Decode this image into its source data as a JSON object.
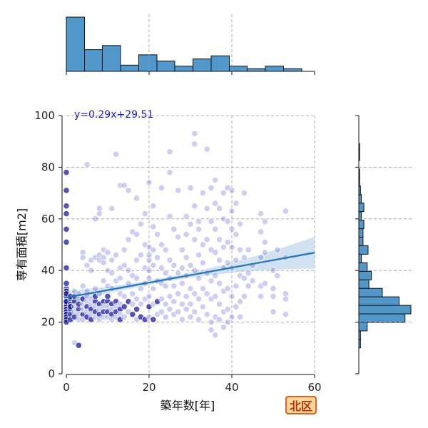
{
  "chart_data": {
    "type": "scatter",
    "xlabel": "築年数[年]",
    "ylabel": "専有面積[m2]",
    "xlim": [
      0,
      60
    ],
    "ylim": [
      0,
      100
    ],
    "x_ticks": [
      0,
      20,
      40,
      60
    ],
    "y_ticks": [
      0,
      20,
      40,
      60,
      80,
      100
    ],
    "grid": true,
    "regression": {
      "slope": 0.29,
      "intercept": 29.51,
      "x_range": [
        0,
        60
      ],
      "label": "y=0.29x+29.51"
    },
    "marginal_x_hist": {
      "bin_edges": [
        0,
        4.4,
        8.7,
        13.1,
        17.5,
        21.9,
        26.2,
        30.6,
        35.0,
        39.4,
        43.7,
        48.1,
        52.5,
        56.9
      ],
      "counts": [
        105,
        42,
        50,
        12,
        32,
        20,
        10,
        24,
        30,
        10,
        5,
        10,
        5
      ]
    },
    "marginal_y_hist": {
      "bin_edges": [
        10,
        13.3,
        16.6,
        19.9,
        23.2,
        26.5,
        29.8,
        33.1,
        36.4,
        39.7,
        43.0,
        46.3,
        49.6,
        52.9,
        56.2,
        59.5,
        62.8,
        66.1,
        69.4,
        72.7,
        76.0,
        79.3,
        82.6,
        85.9,
        89.2
      ],
      "counts": [
        2,
        2,
        10,
        55,
        62,
        48,
        28,
        12,
        15,
        10,
        3,
        11,
        5,
        5,
        6,
        3,
        6,
        3,
        2,
        1,
        1,
        0,
        1,
        1
      ]
    },
    "points": [
      [
        0,
        78
      ],
      [
        0,
        71
      ],
      [
        0,
        65
      ],
      [
        0,
        62
      ],
      [
        0,
        56
      ],
      [
        0,
        51
      ],
      [
        0,
        41
      ],
      [
        0,
        33
      ],
      [
        0,
        30
      ],
      [
        0,
        28
      ],
      [
        0,
        27
      ],
      [
        0,
        26
      ],
      [
        0,
        25
      ],
      [
        0,
        24
      ],
      [
        0,
        23
      ],
      [
        0,
        22
      ],
      [
        0,
        21
      ],
      [
        0,
        20
      ],
      [
        0,
        28
      ],
      [
        0,
        32
      ],
      [
        0,
        35
      ],
      [
        0,
        31
      ],
      [
        1,
        29
      ],
      [
        1,
        27
      ],
      [
        1,
        25
      ],
      [
        1,
        23
      ],
      [
        1,
        21
      ],
      [
        1,
        30
      ],
      [
        1,
        26
      ],
      [
        2,
        12
      ],
      [
        2,
        28
      ],
      [
        2,
        24
      ],
      [
        2,
        22
      ],
      [
        2,
        26
      ],
      [
        2,
        30
      ],
      [
        2,
        32
      ],
      [
        3,
        11
      ],
      [
        3,
        29
      ],
      [
        3,
        25
      ],
      [
        3,
        23
      ],
      [
        3,
        27
      ],
      [
        3,
        21
      ],
      [
        3,
        31
      ],
      [
        4,
        47
      ],
      [
        4,
        45
      ],
      [
        4,
        27
      ],
      [
        4,
        23
      ],
      [
        4,
        25
      ],
      [
        4,
        29
      ],
      [
        4,
        21
      ],
      [
        4,
        34
      ],
      [
        5,
        81
      ],
      [
        5,
        42
      ],
      [
        5,
        28
      ],
      [
        5,
        26
      ],
      [
        5,
        24
      ],
      [
        5,
        22
      ],
      [
        5,
        30
      ],
      [
        5,
        32
      ],
      [
        6,
        44
      ],
      [
        6,
        40
      ],
      [
        6,
        27
      ],
      [
        6,
        25
      ],
      [
        6,
        23
      ],
      [
        6,
        21
      ],
      [
        6,
        29
      ],
      [
        7,
        45
      ],
      [
        7,
        60
      ],
      [
        7,
        28
      ],
      [
        7,
        26
      ],
      [
        7,
        24
      ],
      [
        7,
        22
      ],
      [
        7,
        30
      ],
      [
        7,
        33
      ],
      [
        8,
        64
      ],
      [
        8,
        62
      ],
      [
        8,
        46
      ],
      [
        8,
        44
      ],
      [
        8,
        27
      ],
      [
        8,
        25
      ],
      [
        8,
        23
      ],
      [
        8,
        21
      ],
      [
        8,
        31
      ],
      [
        9,
        48
      ],
      [
        9,
        45
      ],
      [
        9,
        43
      ],
      [
        9,
        28
      ],
      [
        9,
        26
      ],
      [
        9,
        24
      ],
      [
        9,
        22
      ],
      [
        9,
        36
      ],
      [
        10,
        47
      ],
      [
        10,
        40
      ],
      [
        10,
        34
      ],
      [
        10,
        28
      ],
      [
        10,
        26
      ],
      [
        10,
        24
      ],
      [
        10,
        22
      ],
      [
        10,
        30
      ],
      [
        11,
        64
      ],
      [
        11,
        44
      ],
      [
        11,
        39
      ],
      [
        11,
        27
      ],
      [
        11,
        25
      ],
      [
        11,
        23
      ],
      [
        11,
        21
      ],
      [
        11,
        33
      ],
      [
        12,
        85
      ],
      [
        12,
        46
      ],
      [
        12,
        36
      ],
      [
        12,
        28
      ],
      [
        12,
        26
      ],
      [
        12,
        24
      ],
      [
        12,
        22
      ],
      [
        13,
        73
      ],
      [
        13,
        41
      ],
      [
        13,
        37
      ],
      [
        13,
        27
      ],
      [
        13,
        25
      ],
      [
        13,
        23
      ],
      [
        13,
        21
      ],
      [
        13,
        31
      ],
      [
        14,
        73
      ],
      [
        14,
        48
      ],
      [
        14,
        42
      ],
      [
        14,
        30
      ],
      [
        14,
        26
      ],
      [
        14,
        22
      ],
      [
        15,
        71
      ],
      [
        15,
        52
      ],
      [
        15,
        40
      ],
      [
        15,
        35
      ],
      [
        15,
        28
      ],
      [
        15,
        24
      ],
      [
        16,
        55
      ],
      [
        16,
        38
      ],
      [
        16,
        31
      ],
      [
        16,
        27
      ],
      [
        16,
        23
      ],
      [
        17,
        68
      ],
      [
        17,
        54
      ],
      [
        17,
        44
      ],
      [
        17,
        37
      ],
      [
        17,
        29
      ],
      [
        17,
        25
      ],
      [
        17,
        21
      ],
      [
        18,
        58
      ],
      [
        18,
        46
      ],
      [
        18,
        33
      ],
      [
        18,
        27
      ],
      [
        18,
        22
      ],
      [
        19,
        62
      ],
      [
        19,
        50
      ],
      [
        19,
        41
      ],
      [
        19,
        35
      ],
      [
        19,
        29
      ],
      [
        19,
        21
      ],
      [
        20,
        74
      ],
      [
        20,
        49
      ],
      [
        20,
        46
      ],
      [
        20,
        44
      ],
      [
        20,
        40
      ],
      [
        20,
        37
      ],
      [
        20,
        30
      ],
      [
        20,
        26
      ],
      [
        20,
        22
      ],
      [
        21,
        65
      ],
      [
        21,
        57
      ],
      [
        21,
        48
      ],
      [
        21,
        42
      ],
      [
        21,
        33
      ],
      [
        21,
        27
      ],
      [
        21,
        21
      ],
      [
        22,
        54
      ],
      [
        22,
        45
      ],
      [
        22,
        36
      ],
      [
        22,
        28
      ],
      [
        22,
        23
      ],
      [
        23,
        72
      ],
      [
        23,
        50
      ],
      [
        23,
        41
      ],
      [
        23,
        35
      ],
      [
        23,
        29
      ],
      [
        23,
        24
      ],
      [
        24,
        48
      ],
      [
        24,
        39
      ],
      [
        24,
        34
      ],
      [
        24,
        27
      ],
      [
        24,
        22
      ],
      [
        25,
        86
      ],
      [
        25,
        78
      ],
      [
        25,
        61
      ],
      [
        25,
        44
      ],
      [
        25,
        37
      ],
      [
        25,
        30
      ],
      [
        25,
        25
      ],
      [
        26,
        56
      ],
      [
        26,
        42
      ],
      [
        26,
        34
      ],
      [
        26,
        28
      ],
      [
        26,
        23
      ],
      [
        27,
        71
      ],
      [
        27,
        53
      ],
      [
        27,
        39
      ],
      [
        27,
        31
      ],
      [
        27,
        24
      ],
      [
        28,
        48
      ],
      [
        28,
        41
      ],
      [
        28,
        35
      ],
      [
        28,
        27
      ],
      [
        28,
        21
      ],
      [
        29,
        61
      ],
      [
        29,
        54
      ],
      [
        29,
        45
      ],
      [
        29,
        38
      ],
      [
        29,
        30
      ],
      [
        29,
        25
      ],
      [
        30,
        72
      ],
      [
        30,
        58
      ],
      [
        30,
        42
      ],
      [
        30,
        33
      ],
      [
        30,
        27
      ],
      [
        30,
        22
      ],
      [
        31,
        93
      ],
      [
        31,
        89
      ],
      [
        31,
        65
      ],
      [
        31,
        52
      ],
      [
        31,
        40
      ],
      [
        31,
        31
      ],
      [
        31,
        24
      ],
      [
        32,
        59
      ],
      [
        32,
        56
      ],
      [
        32,
        46
      ],
      [
        32,
        37
      ],
      [
        32,
        29
      ],
      [
        32,
        21
      ],
      [
        33,
        70
      ],
      [
        33,
        50
      ],
      [
        33,
        43
      ],
      [
        33,
        33
      ],
      [
        33,
        26
      ],
      [
        34,
        87
      ],
      [
        34,
        64
      ],
      [
        34,
        52
      ],
      [
        34,
        39
      ],
      [
        34,
        31
      ],
      [
        34,
        23
      ],
      [
        35,
        72
      ],
      [
        35,
        59
      ],
      [
        35,
        48
      ],
      [
        35,
        36
      ],
      [
        35,
        29
      ],
      [
        35,
        20
      ],
      [
        35,
        17
      ],
      [
        36,
        75
      ],
      [
        36,
        66
      ],
      [
        36,
        56
      ],
      [
        36,
        47
      ],
      [
        36,
        38
      ],
      [
        36,
        30
      ],
      [
        36,
        22
      ],
      [
        36,
        15
      ],
      [
        37,
        64
      ],
      [
        37,
        52
      ],
      [
        37,
        44
      ],
      [
        37,
        35
      ],
      [
        37,
        27
      ],
      [
        37,
        21
      ],
      [
        38,
        70
      ],
      [
        38,
        60
      ],
      [
        38,
        49
      ],
      [
        38,
        41
      ],
      [
        38,
        32
      ],
      [
        38,
        24
      ],
      [
        38,
        18
      ],
      [
        39,
        72
      ],
      [
        39,
        59
      ],
      [
        39,
        51
      ],
      [
        39,
        43
      ],
      [
        39,
        33
      ],
      [
        39,
        25
      ],
      [
        39,
        20
      ],
      [
        40,
        71
      ],
      [
        40,
        63
      ],
      [
        40,
        56
      ],
      [
        40,
        49
      ],
      [
        40,
        41
      ],
      [
        40,
        30
      ],
      [
        40,
        22
      ],
      [
        41,
        66
      ],
      [
        41,
        54
      ],
      [
        41,
        44
      ],
      [
        41,
        34
      ],
      [
        41,
        26
      ],
      [
        42,
        58
      ],
      [
        42,
        48
      ],
      [
        42,
        38
      ],
      [
        42,
        28
      ],
      [
        42,
        22
      ],
      [
        43,
        70
      ],
      [
        43,
        45
      ],
      [
        43,
        37
      ],
      [
        43,
        30
      ],
      [
        44,
        34
      ],
      [
        44,
        39
      ],
      [
        44,
        48
      ],
      [
        45,
        36
      ],
      [
        45,
        42
      ],
      [
        47,
        62
      ],
      [
        47,
        55
      ],
      [
        47,
        45
      ],
      [
        47,
        34
      ],
      [
        47,
        30
      ],
      [
        48,
        59
      ],
      [
        48,
        51
      ],
      [
        48,
        47
      ],
      [
        48,
        35
      ],
      [
        50,
        40
      ],
      [
        50,
        33
      ],
      [
        50,
        30
      ],
      [
        50,
        24
      ],
      [
        51,
        48
      ],
      [
        51,
        38
      ],
      [
        53,
        63
      ],
      [
        53,
        45
      ],
      [
        53,
        31
      ],
      [
        53,
        29
      ],
      [
        53,
        23
      ]
    ]
  },
  "region_label": "北区",
  "colors": {
    "point_fill": "#3b3bd1",
    "point_dark": "#0b0b9a",
    "regression_line": "#2a77b8",
    "ci_band": "#a9c9e6",
    "hist_fill": "#5197c9",
    "hist_edge": "#111111",
    "grid": "#999999",
    "badge_border": "#e0601c",
    "badge_fill": "#ffd79a",
    "badge_text": "#b5360c"
  }
}
